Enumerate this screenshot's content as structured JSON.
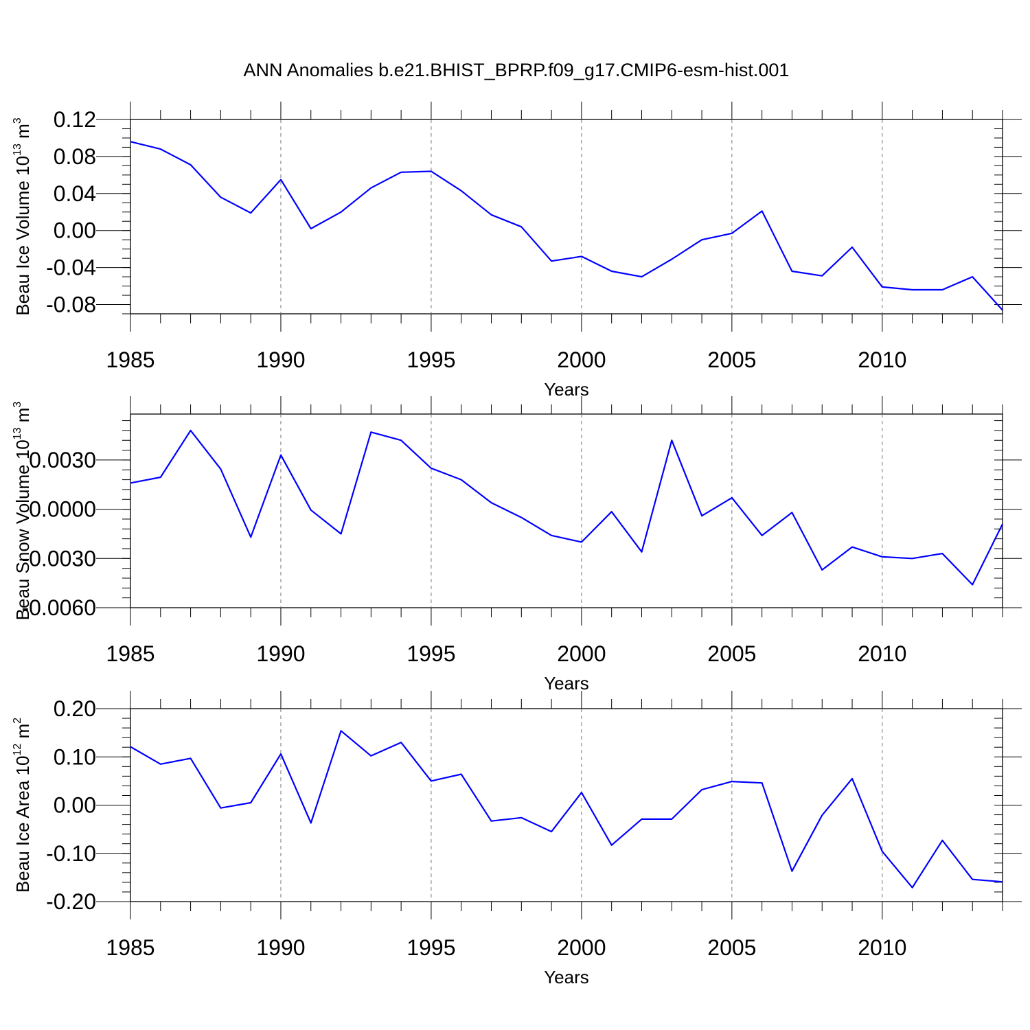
{
  "title": "ANN Anomalies b.e21.BHIST_BPRP.f09_g17.CMIP6-esm-hist.001",
  "line_color": "#0000ff",
  "chart_data": [
    {
      "type": "line",
      "ylabel": "Beau Ice Volume 10",
      "ylabel_exp": "13",
      "ylabel_unit": "m",
      "ylabel_unit_exp": "3",
      "xlabel": "Years",
      "xlim": [
        1985,
        2014
      ],
      "ylim": [
        -0.09,
        0.12
      ],
      "grid": "vertical dashed at major x ticks",
      "x_ticks": [
        1985,
        1990,
        1995,
        2000,
        2005,
        2010
      ],
      "x_tick_labels": [
        "1985",
        "1990",
        "1995",
        "2000",
        "2005",
        "2010"
      ],
      "y_ticks": [
        0.12,
        0.08,
        0.04,
        0.0,
        -0.04,
        -0.08
      ],
      "y_tick_labels": [
        "0.12",
        "0.08",
        "0.04",
        "0.00",
        "-0.04",
        "-0.08"
      ],
      "y_minor_step": 0.01,
      "x": [
        1985,
        1986,
        1987,
        1988,
        1989,
        1990,
        1991,
        1992,
        1993,
        1994,
        1995,
        1996,
        1997,
        1998,
        1999,
        2000,
        2001,
        2002,
        2003,
        2004,
        2005,
        2006,
        2007,
        2008,
        2009,
        2010,
        2011,
        2012,
        2013,
        2014
      ],
      "values": [
        0.096,
        0.088,
        0.071,
        0.036,
        0.019,
        0.055,
        0.002,
        0.02,
        0.046,
        0.063,
        0.064,
        0.043,
        0.017,
        0.004,
        -0.033,
        -0.028,
        -0.044,
        -0.05,
        -0.031,
        -0.01,
        -0.003,
        0.021,
        -0.044,
        -0.049,
        -0.018,
        -0.061,
        -0.064,
        -0.064,
        -0.05,
        -0.086
      ]
    },
    {
      "type": "line",
      "ylabel": "Beau Snow Volume 10",
      "ylabel_exp": "13",
      "ylabel_unit": "m",
      "ylabel_unit_exp": "3",
      "xlabel": "Years",
      "xlim": [
        1985,
        2014
      ],
      "ylim": [
        -0.006,
        0.006
      ],
      "grid": "vertical dashed at major x ticks",
      "x_ticks": [
        1985,
        1990,
        1995,
        2000,
        2005,
        2010
      ],
      "x_tick_labels": [
        "1985",
        "1990",
        "1995",
        "2000",
        "2005",
        "2010"
      ],
      "y_ticks": [
        0.003,
        0.0,
        -0.003,
        -0.006
      ],
      "y_tick_labels": [
        "0.0030",
        "0.0000",
        "-0.0030",
        "-0.0060"
      ],
      "y_minor_step": 0.0006,
      "x": [
        1985,
        1986,
        1987,
        1988,
        1989,
        1990,
        1991,
        1992,
        1993,
        1994,
        1995,
        1996,
        1997,
        1998,
        1999,
        2000,
        2001,
        2002,
        2003,
        2004,
        2005,
        2006,
        2007,
        2008,
        2009,
        2010,
        2011,
        2012,
        2013,
        2014
      ],
      "values": [
        0.0016,
        0.00195,
        0.0048,
        0.00245,
        -0.0017,
        0.0033,
        -5e-05,
        -0.0015,
        0.0047,
        0.0042,
        0.0025,
        0.0018,
        0.0004,
        -0.0005,
        -0.0016,
        -0.002,
        -0.00015,
        -0.0026,
        0.0042,
        -0.0004,
        0.0007,
        -0.0016,
        -0.0002,
        -0.0037,
        -0.0023,
        -0.0029,
        -0.003,
        -0.0027,
        -0.0046,
        -0.0009
      ]
    },
    {
      "type": "line",
      "ylabel": "Beau Ice Area 10",
      "ylabel_exp": "12",
      "ylabel_unit": "m",
      "ylabel_unit_exp": "2",
      "xlabel": "Years",
      "xlim": [
        1985,
        2014
      ],
      "ylim": [
        -0.2,
        0.2
      ],
      "grid": "vertical dashed at major x ticks",
      "x_ticks": [
        1985,
        1990,
        1995,
        2000,
        2005,
        2010
      ],
      "x_tick_labels": [
        "1985",
        "1990",
        "1995",
        "2000",
        "2005",
        "2010"
      ],
      "y_ticks": [
        0.2,
        0.1,
        0.0,
        -0.1,
        -0.2
      ],
      "y_tick_labels": [
        "0.20",
        "0.10",
        "0.00",
        "-0.10",
        "-0.20"
      ],
      "y_minor_step": 0.02,
      "x": [
        1985,
        1986,
        1987,
        1988,
        1989,
        1990,
        1991,
        1992,
        1993,
        1994,
        1995,
        1996,
        1997,
        1998,
        1999,
        2000,
        2001,
        2002,
        2003,
        2004,
        2005,
        2006,
        2007,
        2008,
        2009,
        2010,
        2011,
        2012,
        2013,
        2014
      ],
      "values": [
        0.121,
        0.085,
        0.097,
        -0.006,
        0.005,
        0.106,
        -0.037,
        0.154,
        0.102,
        0.13,
        0.05,
        0.064,
        -0.033,
        -0.026,
        -0.055,
        0.026,
        -0.083,
        -0.029,
        -0.029,
        0.032,
        0.049,
        0.046,
        -0.137,
        -0.021,
        0.055,
        -0.096,
        -0.171,
        -0.073,
        -0.154,
        -0.159
      ]
    }
  ]
}
